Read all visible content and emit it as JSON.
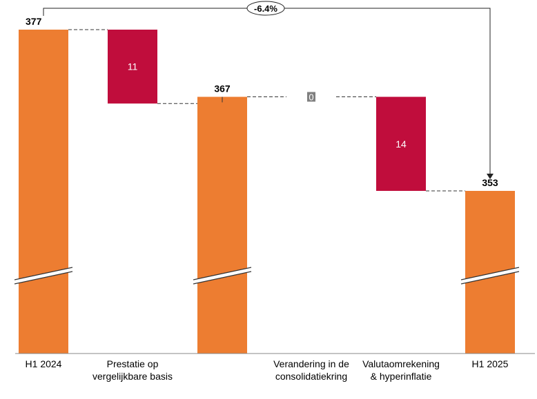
{
  "chart_data": {
    "type": "waterfall",
    "categories": [
      [
        "H1 2024"
      ],
      [
        "Prestatie op",
        "vergelijkbare basis"
      ],
      [
        ""
      ],
      [
        "Verandering in de",
        "consolidatiekring"
      ],
      [
        "Valutaomrekening",
        "& hyperinflatie"
      ],
      [
        "H1 2025"
      ]
    ],
    "steps": [
      {
        "kind": "total",
        "value": 377,
        "label": "377"
      },
      {
        "kind": "decrease",
        "value": 11,
        "label": "11"
      },
      {
        "kind": "total",
        "value": 367,
        "label": "367"
      },
      {
        "kind": "change",
        "value": 0,
        "label": "0"
      },
      {
        "kind": "decrease",
        "value": 14,
        "label": "14"
      },
      {
        "kind": "total",
        "value": 353,
        "label": "353"
      }
    ],
    "change_annotation": {
      "from": "H1 2024",
      "to": "H1 2025",
      "label": "-6.4%"
    },
    "axis_break": true,
    "colors": {
      "total": "#ED7D31",
      "decrease": "#C00D3C",
      "zero": "#7F7F7F",
      "connector": "#333333"
    }
  }
}
